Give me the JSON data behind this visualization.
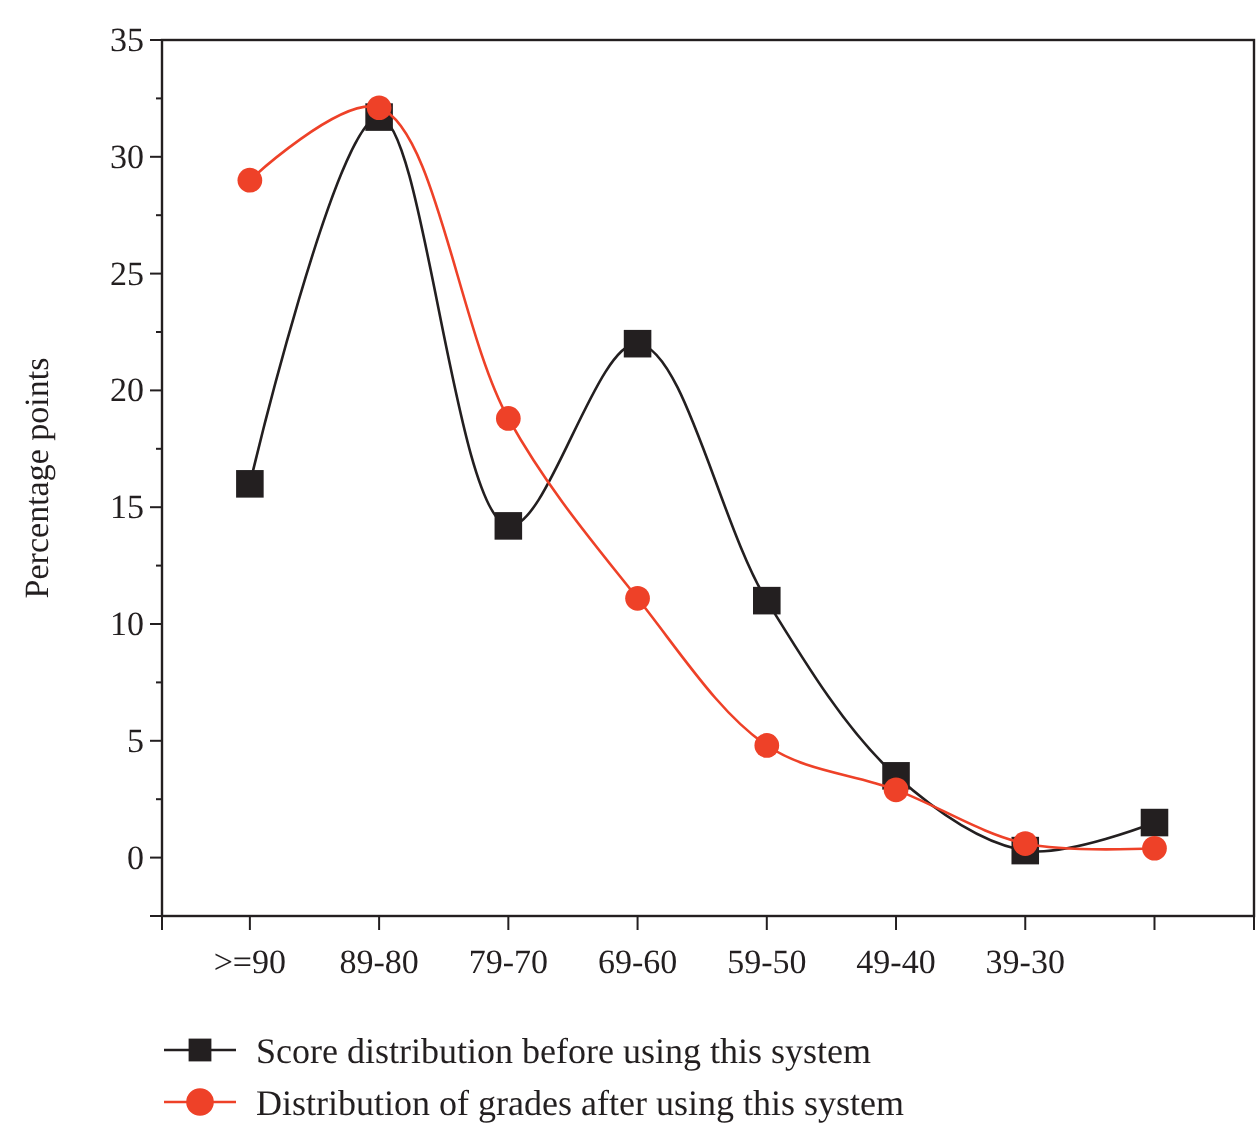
{
  "chart_data": {
    "type": "line",
    "ylabel": "Percentage points",
    "categories": [
      ">=90",
      "89-80",
      "79-70",
      "69-60",
      "59-50",
      "49-40",
      "39-30",
      null
    ],
    "series": [
      {
        "name": "Score distribution before using this system",
        "color": "#231f20",
        "marker": "square",
        "values": [
          16,
          31.7,
          14.2,
          22,
          11,
          3.5,
          0.3,
          1.5
        ]
      },
      {
        "name": "Distribution of grades after using this system",
        "color": "#ee4128",
        "marker": "circle",
        "values": [
          29,
          32.1,
          18.8,
          11.1,
          4.8,
          2.9,
          0.6,
          0.4
        ]
      }
    ],
    "ylim": [
      -2.5,
      35
    ],
    "yticks": [
      {
        "value": -2.5,
        "label": null
      },
      0,
      {
        "value": 2.5,
        "label": null
      },
      5,
      {
        "value": 7.5,
        "label": null
      },
      10,
      {
        "value": 12.5,
        "label": null
      },
      15,
      {
        "value": 17.5,
        "label": null
      },
      20,
      {
        "value": 22.5,
        "label": null
      },
      25,
      {
        "value": 27.5,
        "label": null
      },
      30,
      {
        "value": 32.5,
        "label": null
      },
      35
    ],
    "grid": false,
    "legend": "bottom"
  }
}
